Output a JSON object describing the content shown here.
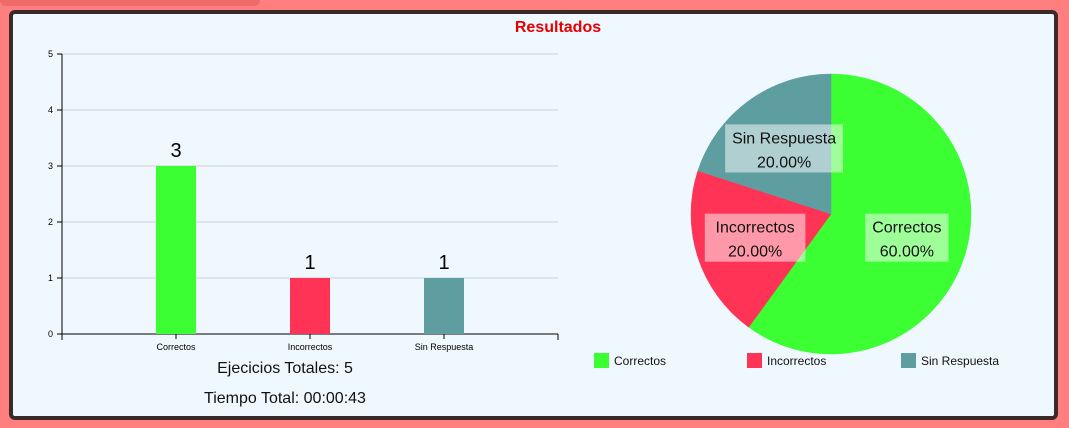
{
  "title": "Resultados",
  "stats": {
    "total_label": "Ejecicios Totales: 5",
    "time_label": "Tiempo Total: 00:00:43"
  },
  "chart_data": [
    {
      "type": "bar",
      "categories": [
        "Correctos",
        "Incorrectos",
        "Sin Respuesta"
      ],
      "values": [
        3,
        1,
        1
      ],
      "colors": [
        "#3cff33",
        "#ff3355",
        "#5f9ea0"
      ],
      "ylim": [
        0,
        5
      ],
      "yticks": [
        "0",
        "1",
        "2",
        "3",
        "4",
        "5"
      ],
      "grid": true,
      "data_labels": [
        "3",
        "1",
        "1"
      ]
    },
    {
      "type": "pie",
      "labels": [
        "Correctos",
        "Incorrectos",
        "Sin Respuesta"
      ],
      "values": [
        60,
        20,
        20
      ],
      "percent_labels": [
        "60.00%",
        "20.00%",
        "20.00%"
      ],
      "colors": [
        "#3cff33",
        "#ff3355",
        "#5f9ea0"
      ],
      "legend_position": "bottom"
    }
  ]
}
